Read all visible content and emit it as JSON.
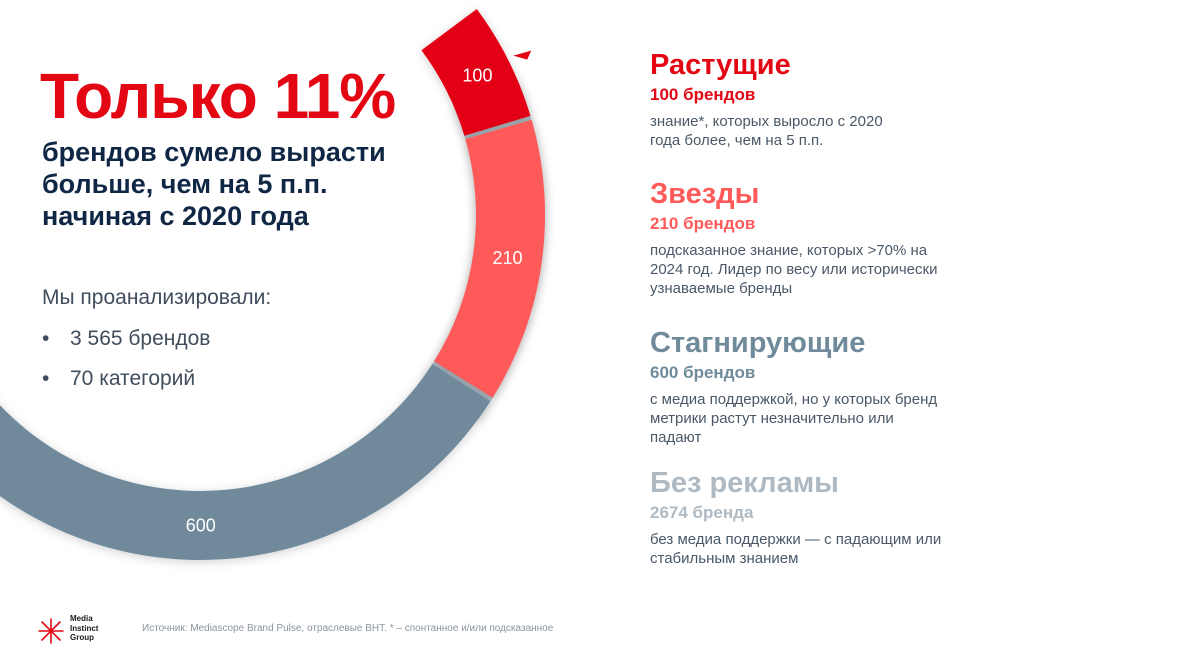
{
  "chart_data": {
    "type": "pie",
    "categories": [
      "Растущие",
      "Звезды",
      "Стагнирующие",
      "Без рекламы"
    ],
    "values": [
      100,
      210,
      600,
      2674
    ],
    "value_labels": [
      "100",
      "210",
      "600",
      "2 674"
    ],
    "colors": [
      "#e30613",
      "#ff5a5a",
      "#6f8a9b",
      "#aeb9c2"
    ]
  },
  "headline": "Только 11%",
  "subhead": "брендов сумело вырасти больше, чем на 5 п.п. начиная с 2020 года",
  "analyzed_label": "Мы проанализировали:",
  "stats": [
    {
      "bullet": "•",
      "text": "3 565 брендов"
    },
    {
      "bullet": "•",
      "text": "70 категорий"
    }
  ],
  "legend": [
    {
      "title": "Растущие",
      "count": "100 брендов",
      "desc": "знание*, которых выросло с 2020 года более, чем на 5 п.п.",
      "color": "#e30613"
    },
    {
      "title": "Звезды",
      "count": "210 брендов",
      "desc": "подсказанное знание, которых >70% на 2024 год. Лидер по весу или исторически узнаваемые бренды",
      "color": "#ff5a5a"
    },
    {
      "title": "Стагнирующие",
      "count": "600 брендов",
      "desc": "с медиа поддержкой, но у которых бренд метрики растут незначительно или падают",
      "color": "#6f8a9b"
    },
    {
      "title": "Без рекламы",
      "count": "2674 бренда",
      "desc": "без медиа поддержки — с падающим или стабильным знанием",
      "color": "#aeb9c2"
    }
  ],
  "logo": {
    "line1": "Media",
    "line2": "Instinct",
    "line3": "Group",
    "icon": "asterisk-logo-icon"
  },
  "source": "Источник: Mediascope Brand Pulse, отраслевые ВНТ. * – спонтанное и/или подсказанное"
}
